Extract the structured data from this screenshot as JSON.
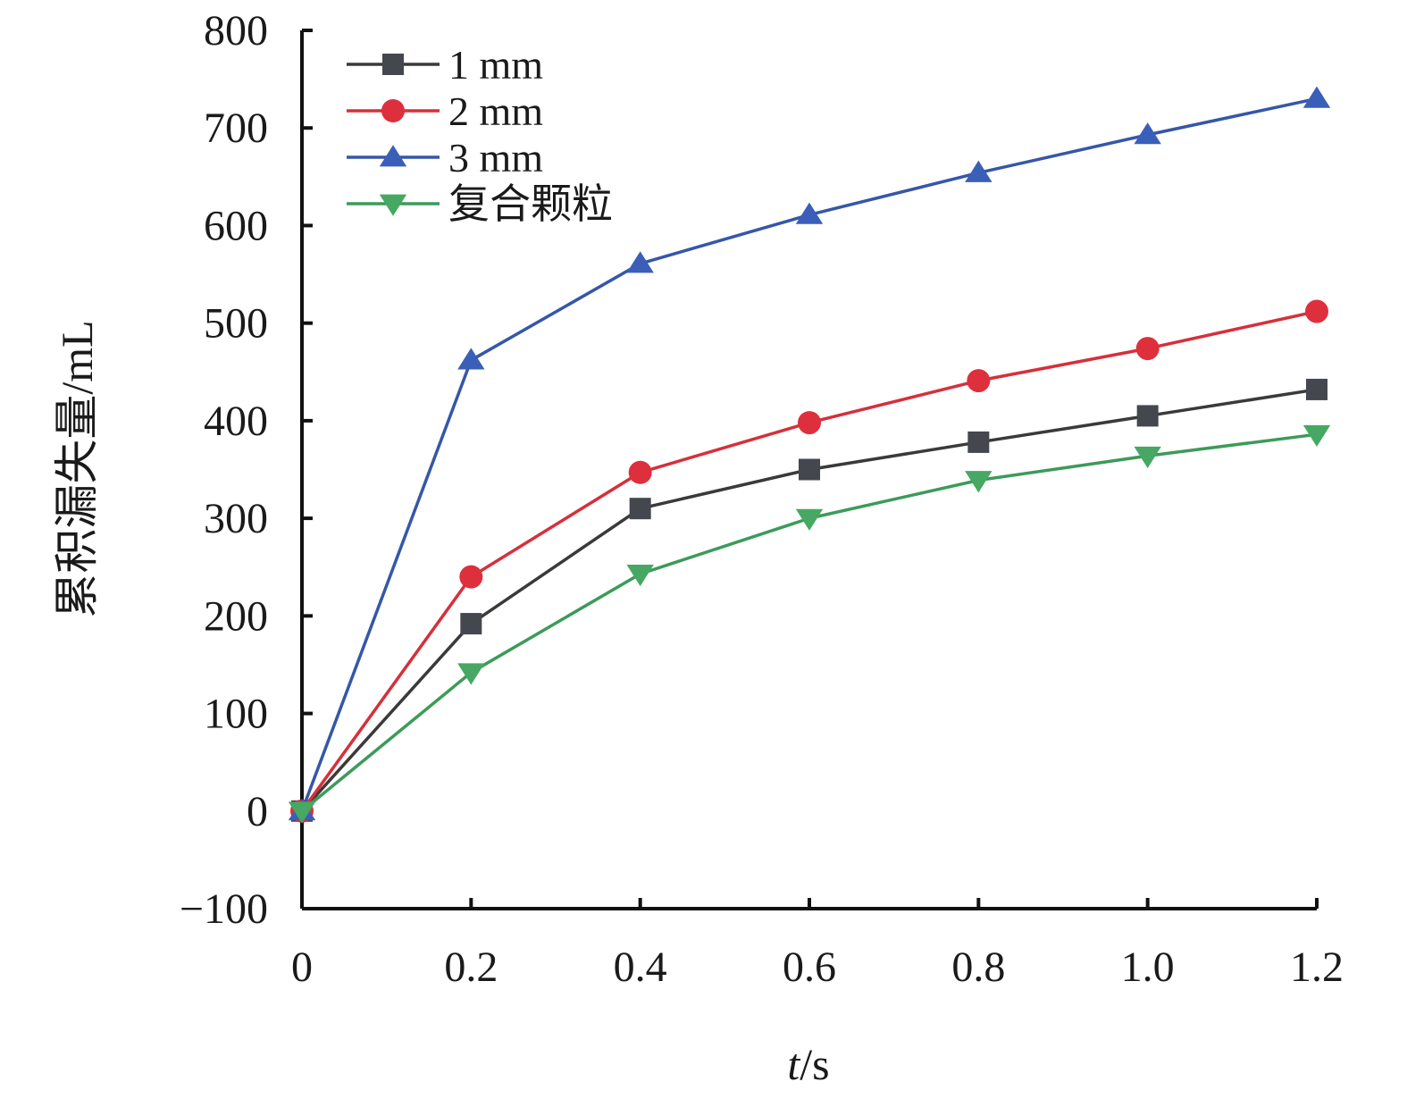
{
  "chart_data": {
    "type": "line",
    "title": "",
    "xlabel": "t/s",
    "xlabel_var": "t",
    "xlabel_unit": "/s",
    "ylabel": "累积漏失量/mL",
    "x": [
      0,
      0.2,
      0.4,
      0.6,
      0.8,
      1.0,
      1.2
    ],
    "x_tick_labels": [
      "0",
      "0.2",
      "0.4",
      "0.6",
      "0.8",
      "1.0",
      "1.2"
    ],
    "xlim": [
      0,
      1.2
    ],
    "ylim": [
      -100,
      800
    ],
    "y_ticks": [
      -100,
      0,
      100,
      200,
      300,
      400,
      500,
      600,
      700,
      800
    ],
    "y_tick_labels": [
      "−100",
      "0",
      "100",
      "200",
      "300",
      "400",
      "500",
      "600",
      "700",
      "800"
    ],
    "grid": false,
    "legend_position": "top-left",
    "series": [
      {
        "name": "1 mm",
        "marker": "square",
        "color": "#3a3a3a",
        "marker_color": "#44474d",
        "values": [
          0,
          192,
          310,
          350,
          378,
          405,
          432
        ]
      },
      {
        "name": "2 mm",
        "marker": "circle",
        "color": "#d6303b",
        "marker_color": "#de2f3c",
        "values": [
          0,
          240,
          347,
          398,
          441,
          474,
          512
        ]
      },
      {
        "name": "3 mm",
        "marker": "triangle-up",
        "color": "#3557a8",
        "marker_color": "#3a5fb8",
        "values": [
          0,
          462,
          561,
          611,
          654,
          693,
          730
        ]
      },
      {
        "name": "复合颗粒",
        "marker": "triangle-down",
        "color": "#3c9b5a",
        "marker_color": "#46a862",
        "values": [
          0,
          142,
          243,
          300,
          339,
          364,
          386
        ]
      }
    ]
  }
}
